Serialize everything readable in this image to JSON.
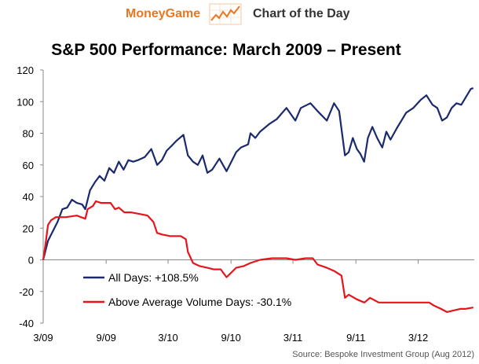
{
  "header": {
    "brand": "MoneyGame",
    "subtitle": "Chart of the Day",
    "logo_icon": "rising-chart-icon"
  },
  "chart_data": {
    "type": "line",
    "title": "S&P 500 Performance: March 2009 – Present",
    "source": "Source: Bespoke Investment Group (Aug 2012)",
    "ylim": [
      -40,
      120
    ],
    "yticks": [
      "120",
      "100",
      "80",
      "60",
      "40",
      "20",
      "0",
      "-20",
      "-40"
    ],
    "ytick_values": [
      120,
      100,
      80,
      60,
      40,
      20,
      0,
      -20,
      -40
    ],
    "xlim": [
      "2009-03",
      "2012-08"
    ],
    "xticks": [
      "3/09",
      "9/09",
      "3/10",
      "9/10",
      "3/11",
      "9/11",
      "3/12"
    ],
    "xtick_dates": [
      "2009-03",
      "2009-09",
      "2010-03",
      "2010-09",
      "2011-03",
      "2011-09",
      "2012-03"
    ],
    "grid": false,
    "legend_position": "lower-left",
    "series": [
      {
        "name": "All Days: +108.5%",
        "color": "#1a2a6c",
        "points": [
          [
            "2009-03-09",
            0
          ],
          [
            "2009-03-23",
            12
          ],
          [
            "2009-04-06",
            18
          ],
          [
            "2009-04-20",
            24
          ],
          [
            "2009-05-04",
            32
          ],
          [
            "2009-05-18",
            33
          ],
          [
            "2009-06-01",
            38
          ],
          [
            "2009-06-15",
            36
          ],
          [
            "2009-07-01",
            35
          ],
          [
            "2009-07-10",
            32
          ],
          [
            "2009-07-24",
            44
          ],
          [
            "2009-08-07",
            49
          ],
          [
            "2009-08-21",
            53
          ],
          [
            "2009-09-04",
            50
          ],
          [
            "2009-09-18",
            58
          ],
          [
            "2009-10-02",
            55
          ],
          [
            "2009-10-16",
            62
          ],
          [
            "2009-10-30",
            57
          ],
          [
            "2009-11-13",
            63
          ],
          [
            "2009-11-27",
            62
          ],
          [
            "2009-12-11",
            63
          ],
          [
            "2009-12-31",
            65
          ],
          [
            "2010-01-19",
            70
          ],
          [
            "2010-02-05",
            60
          ],
          [
            "2010-02-19",
            63
          ],
          [
            "2010-03-05",
            69
          ],
          [
            "2010-03-19",
            72
          ],
          [
            "2010-04-01",
            75
          ],
          [
            "2010-04-23",
            79
          ],
          [
            "2010-05-06",
            66
          ],
          [
            "2010-05-21",
            62
          ],
          [
            "2010-06-04",
            60
          ],
          [
            "2010-06-18",
            66
          ],
          [
            "2010-07-02",
            55
          ],
          [
            "2010-07-16",
            57
          ],
          [
            "2010-08-06",
            64
          ],
          [
            "2010-08-27",
            56
          ],
          [
            "2010-09-10",
            62
          ],
          [
            "2010-09-24",
            68
          ],
          [
            "2010-10-08",
            71
          ],
          [
            "2010-10-29",
            73
          ],
          [
            "2010-11-05",
            80
          ],
          [
            "2010-11-19",
            77
          ],
          [
            "2010-12-03",
            81
          ],
          [
            "2010-12-31",
            86
          ],
          [
            "2011-01-21",
            89
          ],
          [
            "2011-02-18",
            96
          ],
          [
            "2011-03-16",
            88
          ],
          [
            "2011-04-01",
            96
          ],
          [
            "2011-04-29",
            99
          ],
          [
            "2011-05-20",
            94
          ],
          [
            "2011-06-16",
            88
          ],
          [
            "2011-07-07",
            99
          ],
          [
            "2011-07-22",
            94
          ],
          [
            "2011-08-08",
            66
          ],
          [
            "2011-08-19",
            68
          ],
          [
            "2011-08-31",
            77
          ],
          [
            "2011-09-12",
            70
          ],
          [
            "2011-09-22",
            67
          ],
          [
            "2011-10-03",
            62
          ],
          [
            "2011-10-14",
            77
          ],
          [
            "2011-10-27",
            84
          ],
          [
            "2011-11-10",
            77
          ],
          [
            "2011-11-25",
            71
          ],
          [
            "2011-12-07",
            81
          ],
          [
            "2011-12-19",
            76
          ],
          [
            "2012-01-06",
            83
          ],
          [
            "2012-02-03",
            93
          ],
          [
            "2012-02-24",
            96
          ],
          [
            "2012-03-16",
            101
          ],
          [
            "2012-04-02",
            104
          ],
          [
            "2012-04-20",
            98
          ],
          [
            "2012-05-04",
            96
          ],
          [
            "2012-05-18",
            88
          ],
          [
            "2012-06-01",
            90
          ],
          [
            "2012-06-15",
            96
          ],
          [
            "2012-06-29",
            99
          ],
          [
            "2012-07-13",
            98
          ],
          [
            "2012-07-27",
            103
          ],
          [
            "2012-08-10",
            108
          ],
          [
            "2012-08-17",
            108.5
          ]
        ]
      },
      {
        "name": "Above Average Volume Days: -30.1%",
        "color": "#e8141c",
        "points": [
          [
            "2009-03-09",
            0
          ],
          [
            "2009-03-16",
            10
          ],
          [
            "2009-03-23",
            22
          ],
          [
            "2009-04-01",
            25
          ],
          [
            "2009-04-15",
            27
          ],
          [
            "2009-05-15",
            27
          ],
          [
            "2009-06-15",
            28
          ],
          [
            "2009-07-10",
            26
          ],
          [
            "2009-07-17",
            32
          ],
          [
            "2009-08-01",
            34
          ],
          [
            "2009-08-10",
            37
          ],
          [
            "2009-08-25",
            36
          ],
          [
            "2009-09-10",
            36
          ],
          [
            "2009-09-22",
            36
          ],
          [
            "2009-10-05",
            32
          ],
          [
            "2009-10-16",
            33
          ],
          [
            "2009-11-01",
            30
          ],
          [
            "2009-11-20",
            30
          ],
          [
            "2009-12-15",
            29
          ],
          [
            "2010-01-08",
            28
          ],
          [
            "2010-01-25",
            24
          ],
          [
            "2010-02-05",
            17
          ],
          [
            "2010-02-20",
            16
          ],
          [
            "2010-03-15",
            15
          ],
          [
            "2010-04-15",
            15
          ],
          [
            "2010-04-30",
            13
          ],
          [
            "2010-05-06",
            5
          ],
          [
            "2010-05-21",
            -2
          ],
          [
            "2010-06-10",
            -4
          ],
          [
            "2010-07-02",
            -5
          ],
          [
            "2010-07-20",
            -6
          ],
          [
            "2010-08-10",
            -6
          ],
          [
            "2010-08-27",
            -11
          ],
          [
            "2010-09-10",
            -8
          ],
          [
            "2010-09-24",
            -5
          ],
          [
            "2010-10-15",
            -4
          ],
          [
            "2010-11-05",
            -2
          ],
          [
            "2010-12-03",
            0
          ],
          [
            "2011-01-07",
            1
          ],
          [
            "2011-02-18",
            1
          ],
          [
            "2011-03-16",
            0
          ],
          [
            "2011-04-15",
            1
          ],
          [
            "2011-05-06",
            1
          ],
          [
            "2011-05-20",
            -3
          ],
          [
            "2011-06-16",
            -5
          ],
          [
            "2011-07-07",
            -7
          ],
          [
            "2011-07-29",
            -10
          ],
          [
            "2011-08-08",
            -24
          ],
          [
            "2011-08-19",
            -22
          ],
          [
            "2011-09-12",
            -25
          ],
          [
            "2011-10-04",
            -27
          ],
          [
            "2011-10-20",
            -24
          ],
          [
            "2011-11-15",
            -27
          ],
          [
            "2011-12-15",
            -27
          ],
          [
            "2012-01-15",
            -27
          ],
          [
            "2012-03-01",
            -27
          ],
          [
            "2012-04-10",
            -27
          ],
          [
            "2012-04-25",
            -29
          ],
          [
            "2012-05-15",
            -31
          ],
          [
            "2012-06-01",
            -33
          ],
          [
            "2012-06-20",
            -32
          ],
          [
            "2012-07-10",
            -31
          ],
          [
            "2012-07-25",
            -31
          ],
          [
            "2012-08-17",
            -30.1
          ]
        ]
      }
    ]
  }
}
